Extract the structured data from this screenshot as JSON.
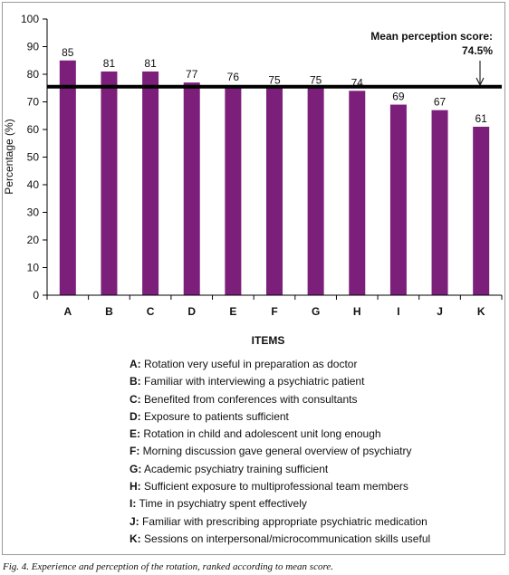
{
  "chart_data": {
    "type": "bar",
    "categories": [
      "A",
      "B",
      "C",
      "D",
      "E",
      "F",
      "G",
      "H",
      "I",
      "J",
      "K"
    ],
    "values": [
      85,
      81,
      81,
      77,
      76,
      75,
      75,
      74,
      69,
      67,
      61
    ],
    "ylabel": "Percentage (%)",
    "xlabel": "ITEMS",
    "ylim": [
      0,
      100
    ],
    "yticks": [
      0,
      10,
      20,
      30,
      40,
      50,
      60,
      70,
      80,
      90,
      100
    ],
    "reference_line": {
      "value": 74.5
    },
    "annotation": {
      "line1": "Mean perception score:",
      "line2": "74.5%"
    },
    "grid": false,
    "colors": {
      "bar": "#7b1f7a",
      "reference_line": "#000000"
    }
  },
  "legend_items": [
    {
      "key": "A:",
      "text": "Rotation very useful in preparation as doctor"
    },
    {
      "key": "B:",
      "text": "Familiar with interviewing a psychiatric patient"
    },
    {
      "key": "C:",
      "text": "Benefited from conferences with consultants"
    },
    {
      "key": "D:",
      "text": "Exposure to patients sufficient"
    },
    {
      "key": "E:",
      "text": "Rotation in child and adolescent unit long enough"
    },
    {
      "key": "F:",
      "text": "Morning discussion gave general overview of psychiatry"
    },
    {
      "key": "G:",
      "text": "Academic psychiatry training sufficient"
    },
    {
      "key": "H:",
      "text": "Sufficient exposure to multiprofessional team members"
    },
    {
      "key": "I:",
      "text": "Time in psychiatry spent effectively"
    },
    {
      "key": "J:",
      "text": "Familiar with prescribing appropriate psychiatric medication"
    },
    {
      "key": "K:",
      "text": "Sessions on interpersonal/microcommunication skills useful"
    }
  ],
  "caption": "Fig. 4. Experience and perception of the rotation, ranked according to mean score."
}
